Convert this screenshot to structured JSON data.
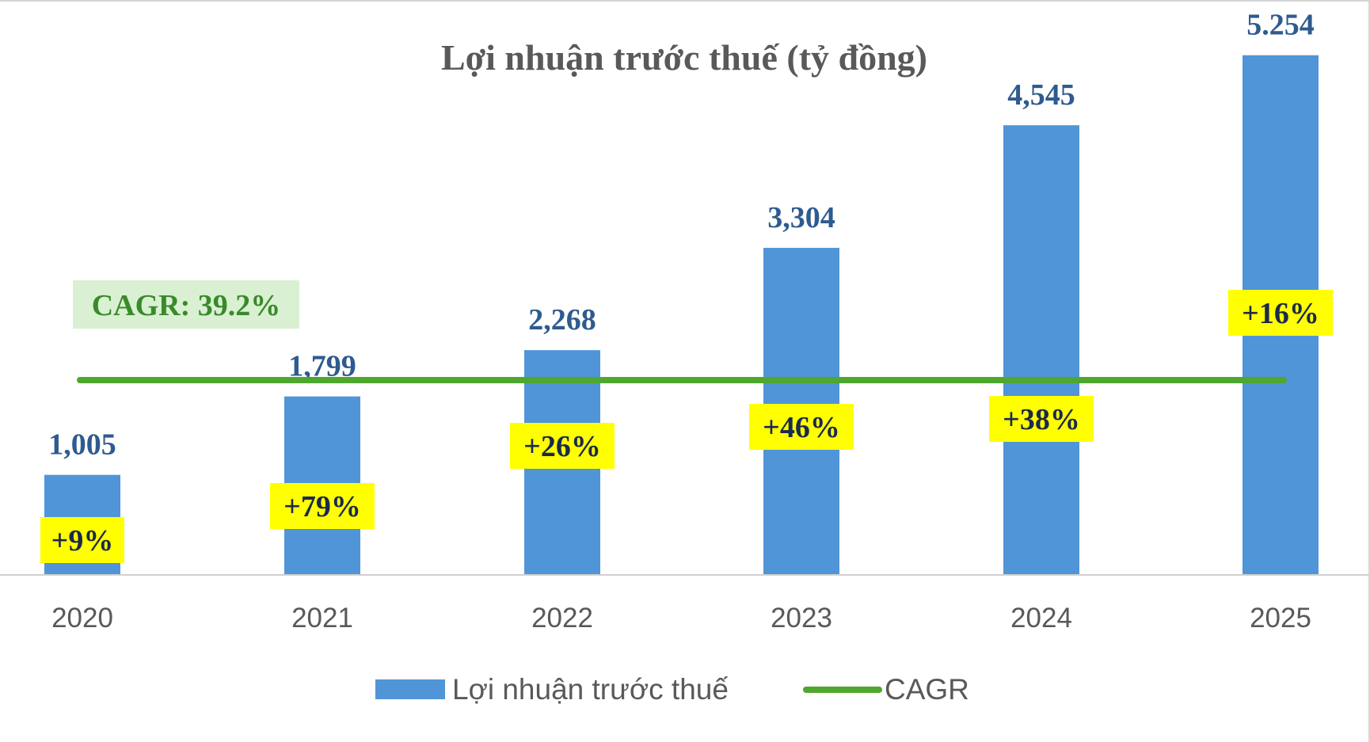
{
  "chart_data": {
    "type": "bar",
    "title": "Lợi nhuận trước thuế (tỷ đồng)",
    "categories": [
      "2020",
      "2021",
      "2022",
      "2023",
      "2024",
      "2025"
    ],
    "series": [
      {
        "name": "Lợi nhuận trước thuế",
        "values": [
          1005,
          1799,
          2268,
          3304,
          4545,
          5254
        ],
        "value_labels": [
          "1,005",
          "1,799",
          "2,268",
          "3,304",
          "4,545",
          "5.254"
        ],
        "growth_labels": [
          "+9%",
          "+79%",
          "+26%",
          "+46%",
          "+38%",
          "+16%"
        ],
        "color": "#5095d8"
      },
      {
        "name": "CAGR",
        "color": "#4ea72e"
      }
    ],
    "annotation": "CAGR: 39.2%",
    "ylim": [
      0,
      5300
    ],
    "grid": false,
    "legend": "bottom",
    "colors": {
      "growth_label_bg": "#ffff00",
      "annotation_bg": "#d9f0d3",
      "annotation_text": "#3a8a2a"
    }
  }
}
